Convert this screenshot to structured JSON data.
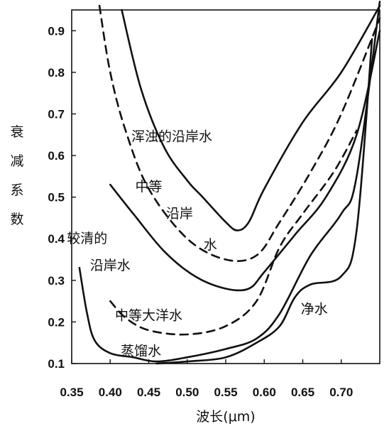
{
  "chart_data": {
    "type": "line",
    "title": "",
    "xlabel": "波长(μm)",
    "ylabel": "衰减系数",
    "xlim": [
      0.35,
      0.75
    ],
    "ylim": [
      0.1,
      0.95
    ],
    "x_ticks": [
      "0.35",
      "0.40",
      "0.45",
      "0.50",
      "0.55",
      "0.60",
      "0.65",
      "0.70"
    ],
    "y_ticks": [
      "0.1",
      "0.2",
      "0.3",
      "0.4",
      "0.5",
      "0.6",
      "0.7",
      "0.8",
      "0.9"
    ],
    "series": [
      {
        "name": "浑浊的沿岸水",
        "style": "solid",
        "x": [
          0.415,
          0.44,
          0.47,
          0.5,
          0.52,
          0.55,
          0.565,
          0.58,
          0.6,
          0.65,
          0.7,
          0.75
        ],
        "y": [
          0.95,
          0.76,
          0.62,
          0.54,
          0.5,
          0.44,
          0.42,
          0.44,
          0.52,
          0.68,
          0.8,
          0.96
        ]
      },
      {
        "name": "中等沿岸水",
        "style": "dashed",
        "x": [
          0.386,
          0.4,
          0.42,
          0.45,
          0.5,
          0.55,
          0.59,
          0.62,
          0.66,
          0.7,
          0.75
        ],
        "y": [
          0.96,
          0.8,
          0.66,
          0.52,
          0.4,
          0.35,
          0.36,
          0.44,
          0.56,
          0.7,
          0.93
        ]
      },
      {
        "name": "较清的沿岸水",
        "style": "solid",
        "x": [
          0.4,
          0.43,
          0.47,
          0.51,
          0.55,
          0.58,
          0.6,
          0.64,
          0.68,
          0.72,
          0.75
        ],
        "y": [
          0.53,
          0.46,
          0.37,
          0.31,
          0.28,
          0.28,
          0.32,
          0.41,
          0.5,
          0.65,
          0.9
        ]
      },
      {
        "name": "中等大洋水",
        "style": "dashed",
        "x": [
          0.4,
          0.42,
          0.45,
          0.5,
          0.55,
          0.59,
          0.62,
          0.65,
          0.69,
          0.72
        ],
        "y": [
          0.25,
          0.21,
          0.18,
          0.17,
          0.19,
          0.25,
          0.38,
          0.46,
          0.56,
          0.66
        ]
      },
      {
        "name": "蒸馏水",
        "style": "solid",
        "x": [
          0.36,
          0.37,
          0.38,
          0.4,
          0.43,
          0.46,
          0.5,
          0.55,
          0.59,
          0.62,
          0.66,
          0.7,
          0.72,
          0.75
        ],
        "y": [
          0.33,
          0.22,
          0.155,
          0.125,
          0.115,
          0.105,
          0.115,
          0.135,
          0.16,
          0.22,
          0.36,
          0.46,
          0.55,
          0.97
        ]
      },
      {
        "name": "净水",
        "style": "solid",
        "x": [
          0.46,
          0.5,
          0.55,
          0.59,
          0.62,
          0.64,
          0.66,
          0.7,
          0.72,
          0.74
        ],
        "y": [
          0.1,
          0.105,
          0.115,
          0.15,
          0.19,
          0.26,
          0.29,
          0.31,
          0.42,
          0.88
        ]
      }
    ],
    "annotations": [
      {
        "text": "浑浊的沿岸水",
        "x": 0.48,
        "y": 0.635
      },
      {
        "text": "中等",
        "x": 0.45,
        "y": 0.515
      },
      {
        "text": "沿岸",
        "x": 0.49,
        "y": 0.45
      },
      {
        "text": "水",
        "x": 0.53,
        "y": 0.375
      },
      {
        "text": "较清的",
        "x": 0.37,
        "y": 0.39
      },
      {
        "text": "沿岸水",
        "x": 0.4,
        "y": 0.325
      },
      {
        "text": "中等大洋水",
        "x": 0.45,
        "y": 0.205
      },
      {
        "text": "蒸馏水",
        "x": 0.44,
        "y": 0.12
      },
      {
        "text": "净水",
        "x": 0.665,
        "y": 0.22
      }
    ],
    "grid": false,
    "legend": "none"
  }
}
